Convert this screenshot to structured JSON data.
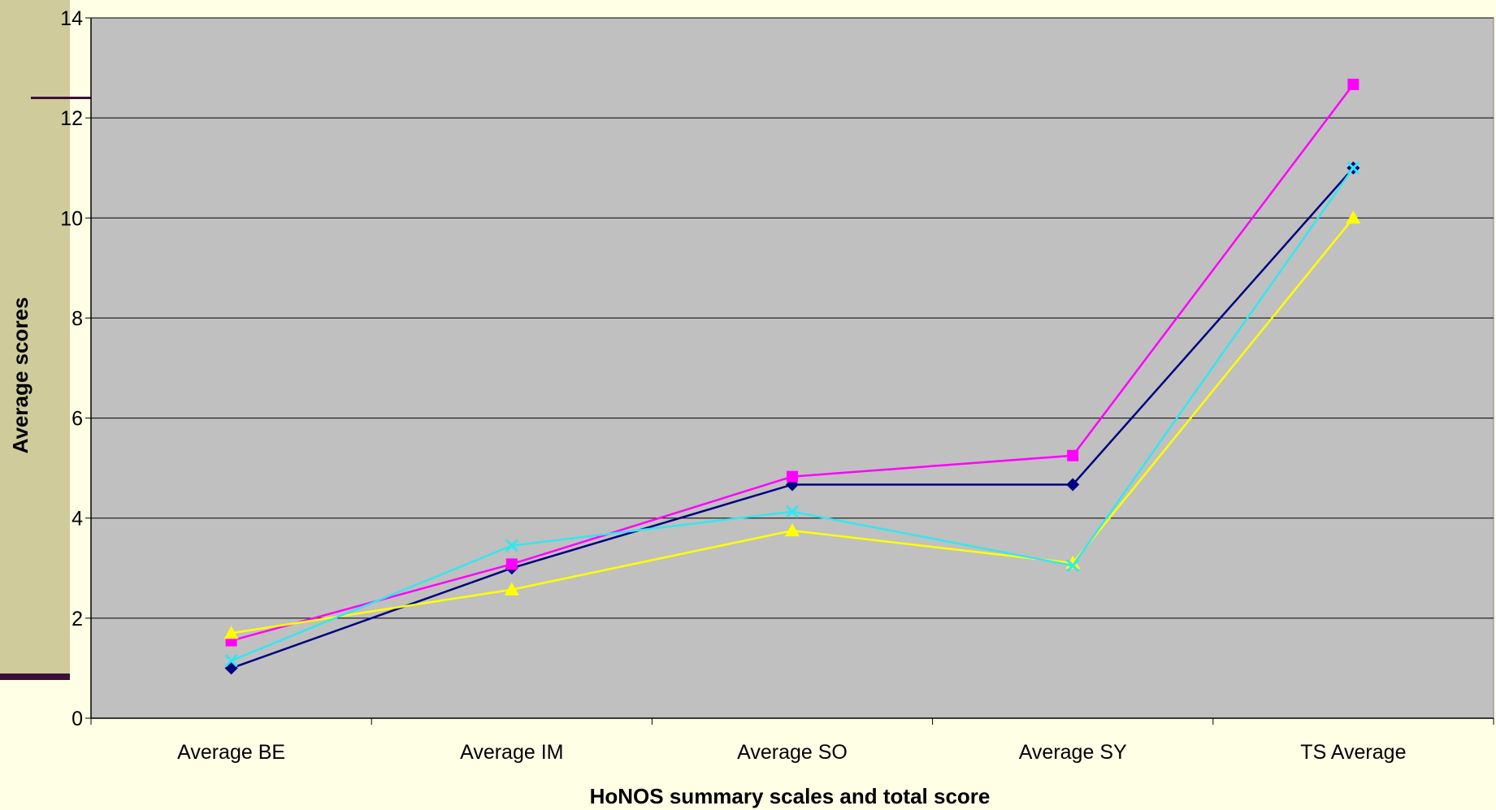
{
  "chart_data": {
    "type": "line",
    "title": "",
    "xlabel": "HoNOS summary scales and total score",
    "ylabel": "Average scores",
    "categories": [
      "Average BE",
      "Average IM",
      "Average SO",
      "Average SY",
      "TS Average"
    ],
    "ylim": [
      0,
      14
    ],
    "yticks": [
      0,
      2,
      4,
      6,
      8,
      10,
      12,
      14
    ],
    "grid": "horizontal",
    "legend": "none",
    "plot_background": "#c0c0c0",
    "series": [
      {
        "color": "#000080",
        "marker": "diamond",
        "values": [
          1.0,
          3.0,
          4.67,
          4.67,
          11.0
        ]
      },
      {
        "color": "#ff00ff",
        "marker": "square",
        "values": [
          1.55,
          3.08,
          4.83,
          5.25,
          12.67
        ]
      },
      {
        "color": "#ffff00",
        "marker": "triangle",
        "values": [
          1.7,
          2.57,
          3.75,
          3.1,
          10.0
        ]
      },
      {
        "color": "#33e6f0",
        "marker": "x",
        "values": [
          1.15,
          3.45,
          4.13,
          3.05,
          11.0
        ]
      }
    ]
  }
}
